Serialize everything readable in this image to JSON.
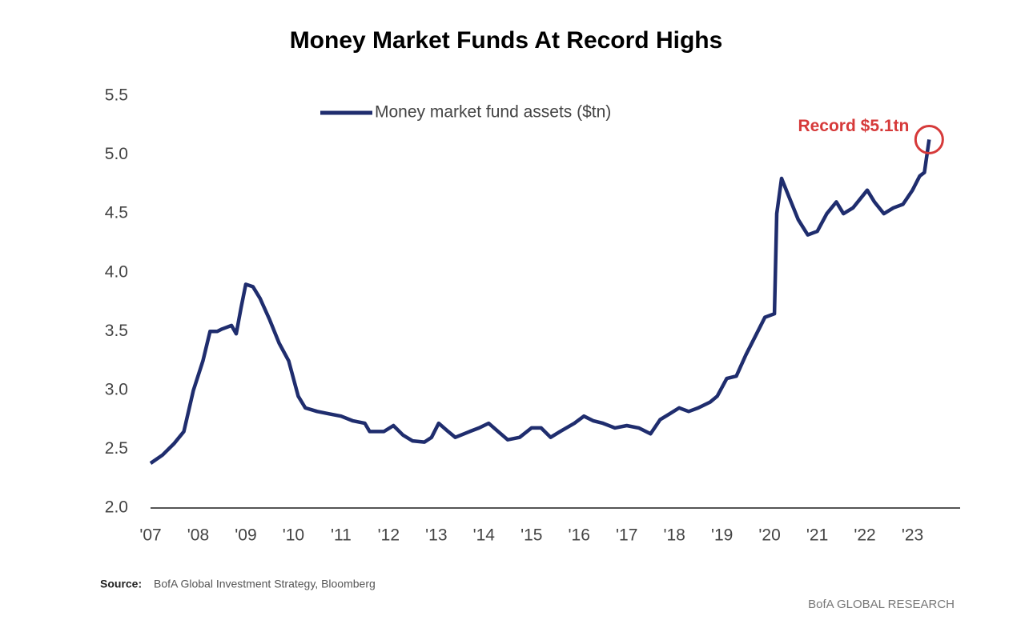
{
  "chart_data": {
    "type": "line",
    "title": "Money Market Funds At Record Highs",
    "series": [
      {
        "name": "Money market fund assets ($tn)",
        "color": "#1f2d6e",
        "x": [
          2007.0,
          2007.25,
          2007.5,
          2007.7,
          2007.9,
          2008.1,
          2008.25,
          2008.4,
          2008.5,
          2008.7,
          2008.8,
          2008.9,
          2009.0,
          2009.15,
          2009.3,
          2009.5,
          2009.7,
          2009.9,
          2010.1,
          2010.25,
          2010.5,
          2010.75,
          2011.0,
          2011.25,
          2011.5,
          2011.6,
          2011.9,
          2012.1,
          2012.3,
          2012.5,
          2012.75,
          2012.9,
          2013.05,
          2013.25,
          2013.4,
          2013.7,
          2013.9,
          2014.1,
          2014.3,
          2014.5,
          2014.75,
          2015.0,
          2015.2,
          2015.4,
          2015.6,
          2015.9,
          2016.1,
          2016.3,
          2016.5,
          2016.75,
          2017.0,
          2017.25,
          2017.5,
          2017.7,
          2017.9,
          2018.1,
          2018.3,
          2018.5,
          2018.75,
          2018.9,
          2019.1,
          2019.3,
          2019.5,
          2019.75,
          2019.9,
          2020.1,
          2020.15,
          2020.25,
          2020.4,
          2020.6,
          2020.8,
          2021.0,
          2021.2,
          2021.4,
          2021.55,
          2021.75,
          2021.95,
          2022.05,
          2022.2,
          2022.4,
          2022.6,
          2022.8,
          2023.0,
          2023.15,
          2023.25,
          2023.35
        ],
        "values": [
          2.38,
          2.45,
          2.55,
          2.65,
          3.0,
          3.25,
          3.5,
          3.5,
          3.52,
          3.55,
          3.48,
          3.7,
          3.9,
          3.88,
          3.78,
          3.6,
          3.4,
          3.25,
          2.95,
          2.85,
          2.82,
          2.8,
          2.78,
          2.74,
          2.72,
          2.65,
          2.65,
          2.7,
          2.62,
          2.57,
          2.56,
          2.6,
          2.72,
          2.65,
          2.6,
          2.65,
          2.68,
          2.72,
          2.65,
          2.58,
          2.6,
          2.68,
          2.68,
          2.6,
          2.65,
          2.72,
          2.78,
          2.74,
          2.72,
          2.68,
          2.7,
          2.68,
          2.63,
          2.75,
          2.8,
          2.85,
          2.82,
          2.85,
          2.9,
          2.95,
          3.1,
          3.12,
          3.3,
          3.5,
          3.62,
          3.65,
          4.5,
          4.8,
          4.65,
          4.45,
          4.32,
          4.35,
          4.5,
          4.6,
          4.5,
          4.55,
          4.65,
          4.7,
          4.6,
          4.5,
          4.55,
          4.58,
          4.7,
          4.82,
          4.85,
          5.13
        ]
      }
    ],
    "xlim": [
      2007,
      2024
    ],
    "xticks": [
      {
        "value": 2007,
        "label": "'07"
      },
      {
        "value": 2008,
        "label": "'08"
      },
      {
        "value": 2009,
        "label": "'09"
      },
      {
        "value": 2010,
        "label": "'10"
      },
      {
        "value": 2011,
        "label": "'11"
      },
      {
        "value": 2012,
        "label": "'12"
      },
      {
        "value": 2013,
        "label": "'13"
      },
      {
        "value": 2014,
        "label": "'14"
      },
      {
        "value": 2015,
        "label": "'15"
      },
      {
        "value": 2016,
        "label": "'16"
      },
      {
        "value": 2017,
        "label": "'17"
      },
      {
        "value": 2018,
        "label": "'18"
      },
      {
        "value": 2019,
        "label": "'19"
      },
      {
        "value": 2020,
        "label": "'20"
      },
      {
        "value": 2021,
        "label": "'21"
      },
      {
        "value": 2022,
        "label": "'22"
      },
      {
        "value": 2023,
        "label": "'23"
      }
    ],
    "ylim": [
      2,
      5.5
    ],
    "yticks": [
      {
        "value": 2,
        "label": "2.0"
      },
      {
        "value": 2.5,
        "label": "2.5"
      },
      {
        "value": 3,
        "label": "3.0"
      },
      {
        "value": 3.5,
        "label": "3.5"
      },
      {
        "value": 4,
        "label": "4.0"
      },
      {
        "value": 4.5,
        "label": "4.5"
      },
      {
        "value": 5,
        "label": "5.0"
      },
      {
        "value": 5.5,
        "label": "5.5"
      }
    ],
    "annotation": {
      "text": "Record $5.1tn",
      "x": 2023.35,
      "y": 5.13,
      "color": "#d63a3a"
    },
    "source": {
      "label": "Source:",
      "text": "BofA Global Investment Strategy, Bloomberg"
    },
    "brand": "BofA GLOBAL RESEARCH"
  }
}
